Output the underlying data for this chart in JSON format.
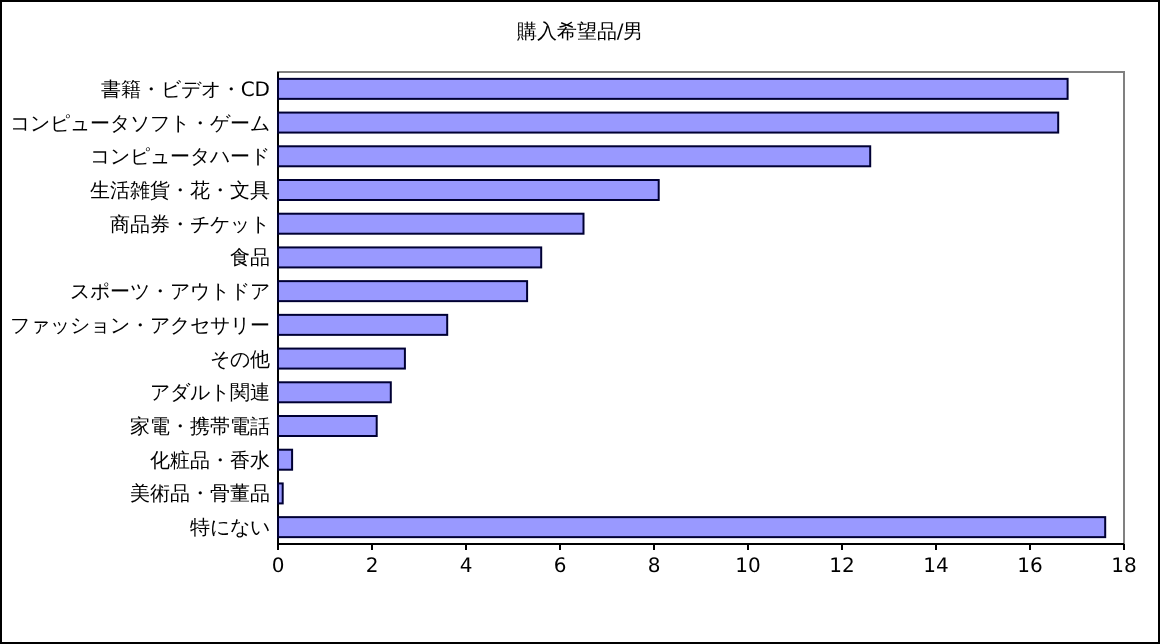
{
  "chart_data": {
    "type": "bar",
    "orientation": "horizontal",
    "title": "購入希望品/男",
    "categories": [
      "書籍・ビデオ・CD",
      "コンピュータソフト・ゲーム",
      "コンピュータハード",
      "生活雑貨・花・文具",
      "商品券・チケット",
      "食品",
      "スポーツ・アウトドア",
      "ファッション・アクセサリー",
      "その他",
      "アダルト関連",
      "家電・携帯電話",
      "化粧品・香水",
      "美術品・骨董品",
      "特にない"
    ],
    "values": [
      16.8,
      16.6,
      12.6,
      8.1,
      6.5,
      5.6,
      5.3,
      3.6,
      2.7,
      2.4,
      2.1,
      0.3,
      0.1,
      17.6
    ],
    "color": "#9999ff",
    "xlim": [
      0,
      18
    ],
    "xticks": [
      0,
      2,
      4,
      6,
      8,
      10,
      12,
      14,
      16,
      18
    ],
    "grid": false
  }
}
